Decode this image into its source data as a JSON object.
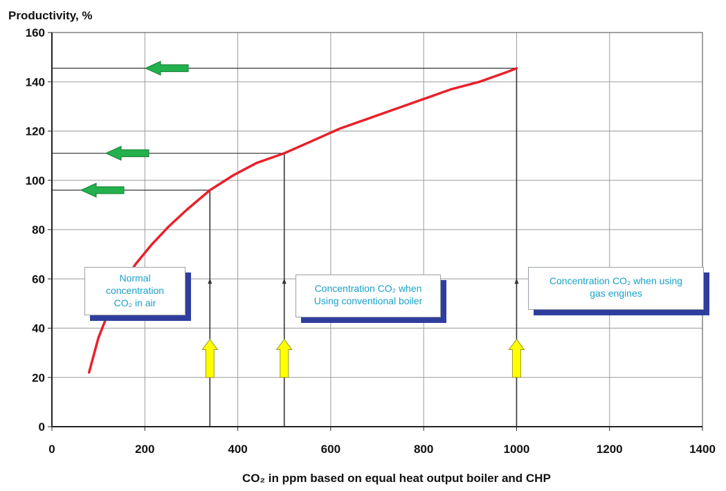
{
  "chart_data": {
    "type": "line",
    "title": "",
    "ylabel": "Productivity, %",
    "xlabel": "CO₂ in ppm based on equal heat output boiler and CHP",
    "xlim": [
      0,
      1400
    ],
    "ylim": [
      0,
      160
    ],
    "x_ticks": [
      0,
      200,
      400,
      600,
      800,
      1000,
      1200,
      1400
    ],
    "y_ticks": [
      0,
      20,
      40,
      60,
      80,
      100,
      120,
      140,
      160
    ],
    "grid": true,
    "series": [
      {
        "color": "#e8202a",
        "x": [
          80,
          100,
          125,
          150,
          180,
          215,
          250,
          290,
          340,
          390,
          440,
          500,
          560,
          620,
          680,
          740,
          800,
          860,
          920,
          980,
          1000
        ],
        "y": [
          22,
          36,
          48,
          57,
          66,
          74,
          81,
          88,
          96,
          102,
          107,
          111,
          116,
          121,
          125,
          129,
          133,
          137,
          140,
          144,
          145.5
        ]
      }
    ],
    "reference_lines": [
      {
        "x": 340,
        "y": 96
      },
      {
        "x": 500,
        "y": 111
      },
      {
        "x": 1000,
        "y": 145.5
      }
    ],
    "markers": {
      "left_arrow_color": "#22b14c",
      "up_arrow_color": "#ffff00"
    }
  },
  "callouts": [
    {
      "lines": [
        "Normal",
        "concentration",
        "CO₂ in air"
      ]
    },
    {
      "lines": [
        "Concentration CO₂ when",
        "Using conventional boiler"
      ]
    },
    {
      "lines": [
        "Concentration CO₂ when using",
        "gas engines"
      ]
    }
  ]
}
